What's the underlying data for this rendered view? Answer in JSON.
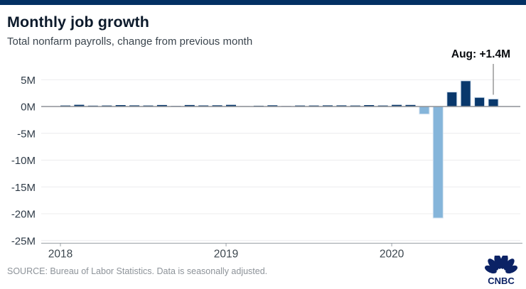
{
  "topbar": {
    "color": "#033063"
  },
  "header": {
    "title": "Monthly job growth",
    "subtitle": "Total nonfarm payrolls, change from previous month"
  },
  "annotation": {
    "label": "Aug: +1.4M"
  },
  "footer": {
    "source": "SOURCE: Bureau of Labor Statistics. Data is seasonally adjusted.",
    "logo_text": "CNBC"
  },
  "chart_data": {
    "type": "bar",
    "title": "Monthly job growth",
    "subtitle": "Total nonfarm payrolls, change from previous month",
    "unit": "millions of jobs",
    "x": [
      "Jan 2018",
      "Feb 2018",
      "Mar 2018",
      "Apr 2018",
      "May 2018",
      "Jun 2018",
      "Jul 2018",
      "Aug 2018",
      "Sep 2018",
      "Oct 2018",
      "Nov 2018",
      "Dec 2018",
      "Jan 2019",
      "Feb 2019",
      "Mar 2019",
      "Apr 2019",
      "May 2019",
      "Jun 2019",
      "Jul 2019",
      "Aug 2019",
      "Sep 2019",
      "Oct 2019",
      "Nov 2019",
      "Dec 2019",
      "Jan 2020",
      "Feb 2020",
      "Mar 2020",
      "Apr 2020",
      "May 2020",
      "Jun 2020",
      "Jul 2020",
      "Aug 2020"
    ],
    "values": [
      0.18,
      0.32,
      0.16,
      0.18,
      0.27,
      0.21,
      0.18,
      0.28,
      0.11,
      0.28,
      0.2,
      0.23,
      0.31,
      0.01,
      0.15,
      0.22,
      0.09,
      0.18,
      0.19,
      0.21,
      0.21,
      0.19,
      0.26,
      0.18,
      0.31,
      0.29,
      -1.4,
      -20.8,
      2.7,
      4.8,
      1.7,
      1.4
    ],
    "highlight_indices": [
      26,
      27
    ],
    "colors": {
      "bar": "#09386c",
      "bar_highlight": "#85b5da",
      "bar_edge": "#d3e2f0",
      "grid": "#ececee",
      "zero_line": "#8e9196",
      "axis": "#9aa0a6",
      "tick_label": "#2f3b47",
      "leader_line": "#999999"
    },
    "y_ticks": [
      5,
      0,
      -5,
      -10,
      -15,
      -20,
      -25
    ],
    "y_tick_labels": [
      "5M",
      "0M",
      "-5M",
      "-10M",
      "-15M",
      "-20M",
      "-25M"
    ],
    "x_tick_labels": [
      "2018",
      "2019",
      "2020"
    ],
    "ylim": [
      -25.5,
      5.5
    ],
    "grid": true,
    "legend": "none",
    "annotation": {
      "text": "Aug: +1.4M",
      "target_index": 31,
      "target_label": "Aug 2020",
      "target_value": 1.4
    }
  }
}
